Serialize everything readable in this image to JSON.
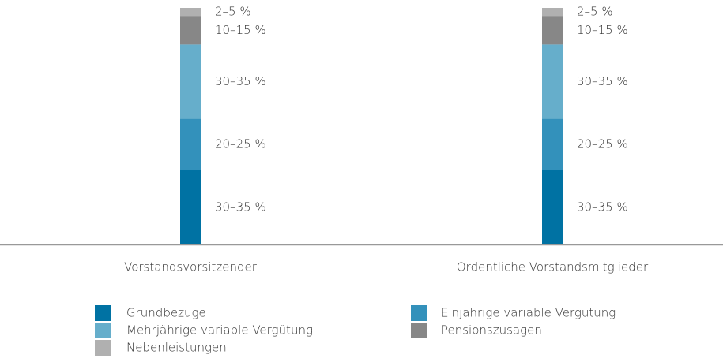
{
  "chart_data": {
    "type": "stacked_bar",
    "categories": [
      "Vorstandsvorsitzender",
      "Ordentliche Vorstandsmitglieder"
    ],
    "series": [
      {
        "name": "Grundbezüge",
        "color": "#0072a3",
        "values": [
          32.5,
          32.5
        ],
        "value_labels": [
          "30–35 %",
          "30–35 %"
        ]
      },
      {
        "name": "Einjährige variable Vergütung",
        "color": "#3391bb",
        "values": [
          22.5,
          22.5
        ],
        "value_labels": [
          "20–25 %",
          "20–25 %"
        ]
      },
      {
        "name": "Mehrjährige variable Vergütung",
        "color": "#66aecb",
        "values": [
          32.5,
          32.5
        ],
        "value_labels": [
          "30–35 %",
          "30–35 %"
        ]
      },
      {
        "name": "Pensionszusagen",
        "color": "#878787",
        "values": [
          12.5,
          12.5
        ],
        "value_labels": [
          "10–15 %",
          "10–15 %"
        ]
      },
      {
        "name": "Nebenleistungen",
        "color": "#b0b0b0",
        "values": [
          3.5,
          3.5
        ],
        "value_labels": [
          "2–5 %",
          "2–5 %"
        ]
      }
    ]
  }
}
